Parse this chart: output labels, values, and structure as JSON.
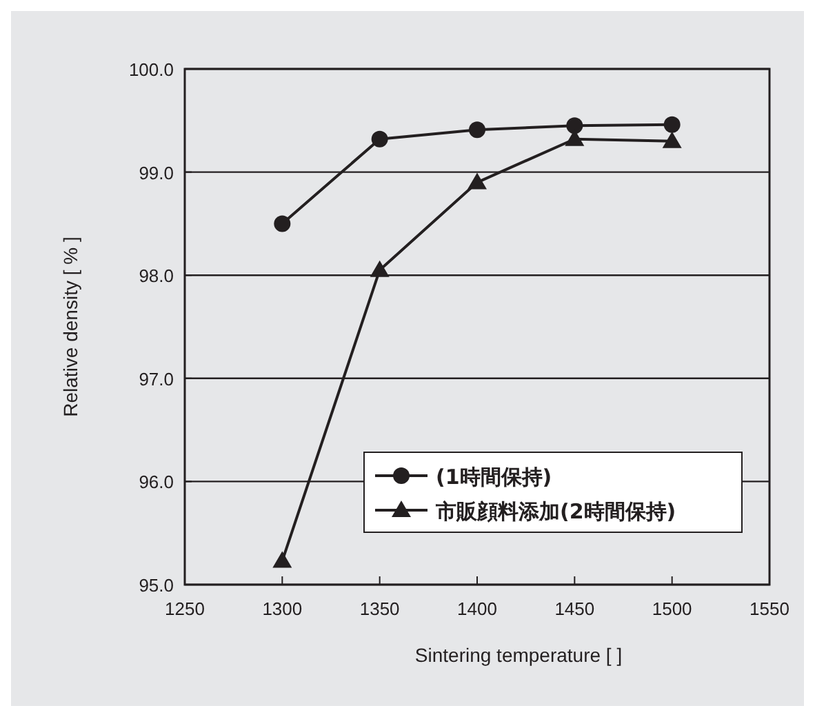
{
  "chart_data": {
    "type": "line",
    "xlabel": "Sintering temperature [ ]",
    "ylabel": "Relative density [ % ]",
    "x": [
      1300,
      1350,
      1400,
      1450,
      1500
    ],
    "series": [
      {
        "name": "(1時間保持)",
        "color": "#231f20",
        "marker": "circle",
        "values": [
          98.5,
          99.32,
          99.41,
          99.45,
          99.46
        ]
      },
      {
        "name": "市販顔料添加(2時間保持)",
        "color": "#231f20",
        "marker": "triangle",
        "values": [
          95.23,
          98.05,
          98.9,
          99.32,
          99.3
        ]
      }
    ],
    "xlim": [
      1250,
      1550
    ],
    "xticks": [
      1250,
      1300,
      1350,
      1400,
      1450,
      1500,
      1550
    ],
    "ylim": [
      95,
      100
    ],
    "yticks": [
      {
        "value": 95,
        "label": "95.0"
      },
      {
        "value": 96,
        "label": "96.0"
      },
      {
        "value": 97,
        "label": "97.0"
      },
      {
        "value": 98,
        "label": "98.0"
      },
      {
        "value": 99,
        "label": "99.0"
      },
      {
        "value": 100,
        "label": "100.0"
      }
    ],
    "grid": "y",
    "legend": "bottom right",
    "line_style": "solid"
  }
}
